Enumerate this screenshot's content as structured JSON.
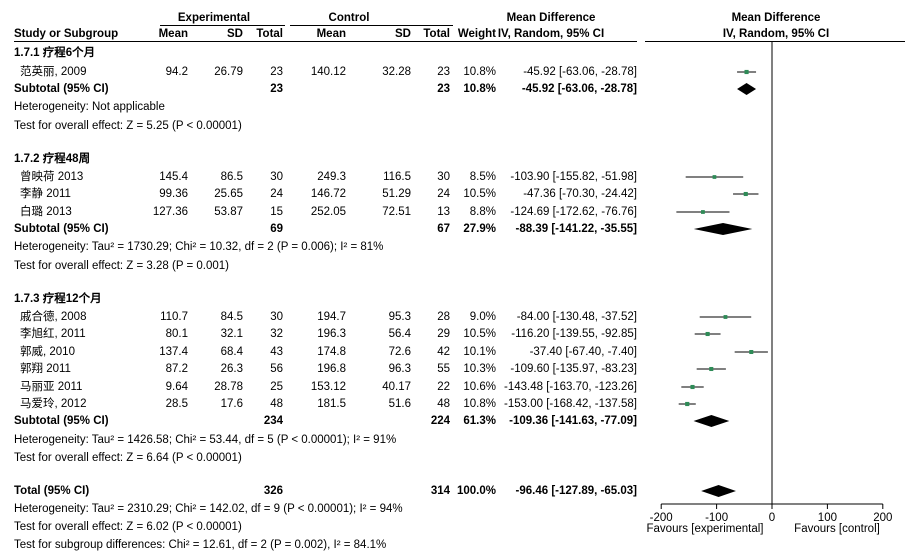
{
  "header": {
    "group_experimental": "Experimental",
    "group_control": "Control",
    "col_study": "Study or Subgroup",
    "col_mean_e": "Mean",
    "col_sd_e": "SD",
    "col_total_e": "Total",
    "col_mean_c": "Mean",
    "col_sd_c": "SD",
    "col_total_c": "Total",
    "col_weight": "Weight",
    "col_md_title": "Mean Difference",
    "col_md_sub": "IV, Random, 95% CI",
    "plot_title": "Mean Difference",
    "plot_sub": "IV, Random, 95% CI"
  },
  "subgroups": [
    {
      "title": "1.7.1 疗程6个月",
      "studies": [
        {
          "name": "范英丽, 2009",
          "mean_e": "94.2",
          "sd_e": "26.79",
          "n_e": "23",
          "mean_c": "140.12",
          "sd_c": "32.28",
          "n_c": "23",
          "weight": "10.8%",
          "ci": "-45.92 [-63.06, -28.78]"
        }
      ],
      "subtotal": {
        "label": "Subtotal (95% CI)",
        "n_e": "23",
        "n_c": "23",
        "weight": "10.8%",
        "ci": "-45.92 [-63.06, -28.78]"
      },
      "heterogeneity": "Heterogeneity: Not applicable",
      "overall": "Test for overall effect: Z = 5.25 (P < 0.00001)"
    },
    {
      "title": "1.7.2 疗程48周",
      "studies": [
        {
          "name": "曾映荷 2013",
          "mean_e": "145.4",
          "sd_e": "86.5",
          "n_e": "30",
          "mean_c": "249.3",
          "sd_c": "116.5",
          "n_c": "30",
          "weight": "8.5%",
          "ci": "-103.90 [-155.82, -51.98]"
        },
        {
          "name": "李静 2011",
          "mean_e": "99.36",
          "sd_e": "25.65",
          "n_e": "24",
          "mean_c": "146.72",
          "sd_c": "51.29",
          "n_c": "24",
          "weight": "10.5%",
          "ci": "-47.36 [-70.30, -24.42]"
        },
        {
          "name": "白璐 2013",
          "mean_e": "127.36",
          "sd_e": "53.87",
          "n_e": "15",
          "mean_c": "252.05",
          "sd_c": "72.51",
          "n_c": "13",
          "weight": "8.8%",
          "ci": "-124.69 [-172.62, -76.76]"
        }
      ],
      "subtotal": {
        "label": "Subtotal (95% CI)",
        "n_e": "69",
        "n_c": "67",
        "weight": "27.9%",
        "ci": "-88.39 [-141.22, -35.55]"
      },
      "heterogeneity": "Heterogeneity: Tau² = 1730.29; Chi² = 10.32, df = 2 (P = 0.006); I² = 81%",
      "overall": "Test for overall effect: Z = 3.28 (P = 0.001)"
    },
    {
      "title": "1.7.3 疗程12个月",
      "studies": [
        {
          "name": "戚合德, 2008",
          "mean_e": "110.7",
          "sd_e": "84.5",
          "n_e": "30",
          "mean_c": "194.7",
          "sd_c": "95.3",
          "n_c": "28",
          "weight": "9.0%",
          "ci": "-84.00 [-130.48, -37.52]"
        },
        {
          "name": "李旭红, 2011",
          "mean_e": "80.1",
          "sd_e": "32.1",
          "n_e": "32",
          "mean_c": "196.3",
          "sd_c": "56.4",
          "n_c": "29",
          "weight": "10.5%",
          "ci": "-116.20 [-139.55, -92.85]"
        },
        {
          "name": "郭威, 2010",
          "mean_e": "137.4",
          "sd_e": "68.4",
          "n_e": "43",
          "mean_c": "174.8",
          "sd_c": "72.6",
          "n_c": "42",
          "weight": "10.1%",
          "ci": "-37.40 [-67.40, -7.40]"
        },
        {
          "name": "郭翔 2011",
          "mean_e": "87.2",
          "sd_e": "26.3",
          "n_e": "56",
          "mean_c": "196.8",
          "sd_c": "96.3",
          "n_c": "55",
          "weight": "10.3%",
          "ci": "-109.60 [-135.97, -83.23]"
        },
        {
          "name": "马丽亚 2011",
          "mean_e": "9.64",
          "sd_e": "28.78",
          "n_e": "25",
          "mean_c": "153.12",
          "sd_c": "40.17",
          "n_c": "22",
          "weight": "10.6%",
          "ci": "-143.48 [-163.70, -123.26]"
        },
        {
          "name": "马爱玲, 2012",
          "mean_e": "28.5",
          "sd_e": "17.6",
          "n_e": "48",
          "mean_c": "181.5",
          "sd_c": "51.6",
          "n_c": "48",
          "weight": "10.8%",
          "ci": "-153.00 [-168.42, -137.58]"
        }
      ],
      "subtotal": {
        "label": "Subtotal (95% CI)",
        "n_e": "234",
        "n_c": "224",
        "weight": "61.3%",
        "ci": "-109.36 [-141.63, -77.09]"
      },
      "heterogeneity": "Heterogeneity: Tau² = 1426.58; Chi² = 53.44, df = 5 (P < 0.00001); I² = 91%",
      "overall": "Test for overall effect: Z = 6.64 (P < 0.00001)"
    }
  ],
  "total": {
    "label": "Total (95% CI)",
    "n_e": "326",
    "n_c": "314",
    "weight": "100.0%",
    "ci": "-96.46 [-127.89, -65.03]"
  },
  "footer": {
    "heterogeneity": "Heterogeneity: Tau² = 2310.29; Chi² = 142.02, df = 9 (P < 0.00001); I² = 94%",
    "overall": "Test for overall effect: Z = 6.02 (P < 0.00001)",
    "subgroup_diff": "Test for subgroup differences: Chi² = 12.61, df = 2 (P = 0.002), I² = 84.1%"
  },
  "axis": {
    "ticks": [
      "-200",
      "-100",
      "0",
      "100",
      "200"
    ],
    "favours_left": "Favours [experimental]",
    "favours_right": "Favours [control]"
  },
  "colors": {
    "marker": "#2e8b57",
    "line": "#000000"
  },
  "chart_data": {
    "type": "scatter",
    "xlim": [
      -200,
      200
    ],
    "studies": [
      {
        "group": "1.7.1",
        "md": -45.92,
        "lo": -63.06,
        "hi": -28.78,
        "weight": 10.8
      },
      {
        "group": "1.7.2",
        "md": -103.9,
        "lo": -155.82,
        "hi": -51.98,
        "weight": 8.5
      },
      {
        "group": "1.7.2",
        "md": -47.36,
        "lo": -70.3,
        "hi": -24.42,
        "weight": 10.5
      },
      {
        "group": "1.7.2",
        "md": -124.69,
        "lo": -172.62,
        "hi": -76.76,
        "weight": 8.8
      },
      {
        "group": "1.7.3",
        "md": -84.0,
        "lo": -130.48,
        "hi": -37.52,
        "weight": 9.0
      },
      {
        "group": "1.7.3",
        "md": -116.2,
        "lo": -139.55,
        "hi": -92.85,
        "weight": 10.5
      },
      {
        "group": "1.7.3",
        "md": -37.4,
        "lo": -67.4,
        "hi": -7.4,
        "weight": 10.1
      },
      {
        "group": "1.7.3",
        "md": -109.6,
        "lo": -135.97,
        "hi": -83.23,
        "weight": 10.3
      },
      {
        "group": "1.7.3",
        "md": -143.48,
        "lo": -163.7,
        "hi": -123.26,
        "weight": 10.6
      },
      {
        "group": "1.7.3",
        "md": -153.0,
        "lo": -168.42,
        "hi": -137.58,
        "weight": 10.8
      }
    ],
    "summaries": [
      {
        "group": "1.7.1",
        "md": -45.92,
        "lo": -63.06,
        "hi": -28.78
      },
      {
        "group": "1.7.2",
        "md": -88.39,
        "lo": -141.22,
        "hi": -35.55
      },
      {
        "group": "1.7.3",
        "md": -109.36,
        "lo": -141.63,
        "hi": -77.09
      },
      {
        "group": "total",
        "md": -96.46,
        "lo": -127.89,
        "hi": -65.03
      }
    ]
  }
}
